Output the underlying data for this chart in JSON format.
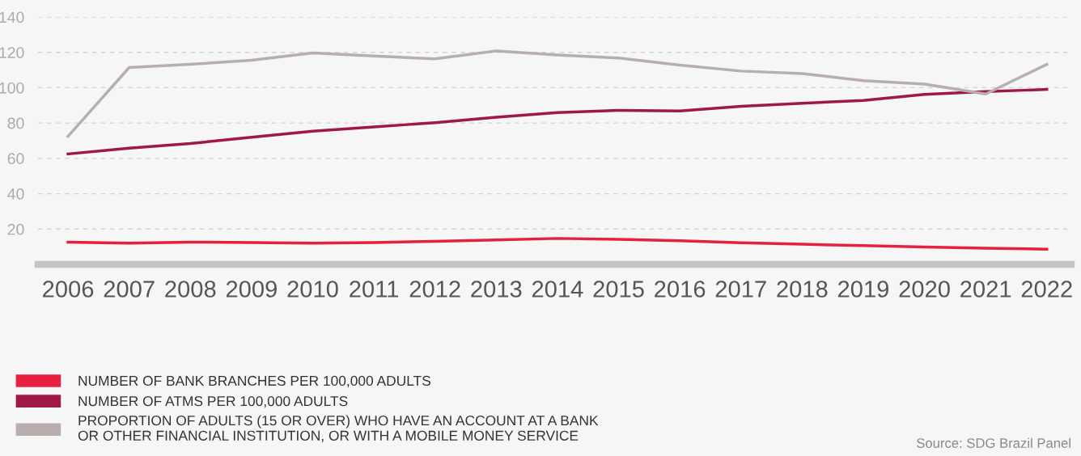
{
  "chart_data": {
    "type": "line",
    "categories": [
      "2006",
      "2007",
      "2008",
      "2009",
      "2010",
      "2011",
      "2012",
      "2013",
      "2014",
      "2015",
      "2016",
      "2017",
      "2018",
      "2019",
      "2020",
      "2021",
      "2022"
    ],
    "series": [
      {
        "name": "NUMBER OF BANK BRANCHES PER 100,000 ADULTS",
        "color": "#e8203f",
        "values": [
          12.6,
          12.0,
          12.6,
          12.4,
          12.0,
          12.4,
          13.0,
          13.8,
          14.7,
          14.2,
          13.4,
          12.2,
          11.4,
          10.6,
          9.8,
          9.2,
          8.6
        ]
      },
      {
        "name": "NUMBER OF ATMS PER 100,000 ADULTS",
        "color": "#a0174a",
        "values": [
          62.5,
          65.8,
          68.4,
          71.9,
          75.4,
          77.8,
          80.2,
          83.3,
          85.9,
          87.2,
          86.8,
          89.4,
          91.2,
          92.8,
          96.2,
          97.8,
          99.0
        ]
      },
      {
        "name": "PROPORTION OF ADULTS (15 OR OVER) WHO HAVE AN ACCOUNT AT A BANK\nOR OTHER FINANCIAL INSTITUTION, OR WITH A MOBILE MONEY SERVICE",
        "color": "#b9aeae",
        "values": [
          72.5,
          111.4,
          113.2,
          115.5,
          119.6,
          117.9,
          116.3,
          120.8,
          118.5,
          116.8,
          112.8,
          109.4,
          108.0,
          104.0,
          102.0,
          96.4,
          113.2
        ]
      }
    ],
    "ylim": [
      0,
      140
    ],
    "yticks": [
      20,
      40,
      60,
      80,
      100,
      120,
      140
    ],
    "grid": "y",
    "legend": "bottom left",
    "marker": "none",
    "line_style": "solid",
    "annotations": [
      "Source: SDG Brazil Panel"
    ]
  }
}
